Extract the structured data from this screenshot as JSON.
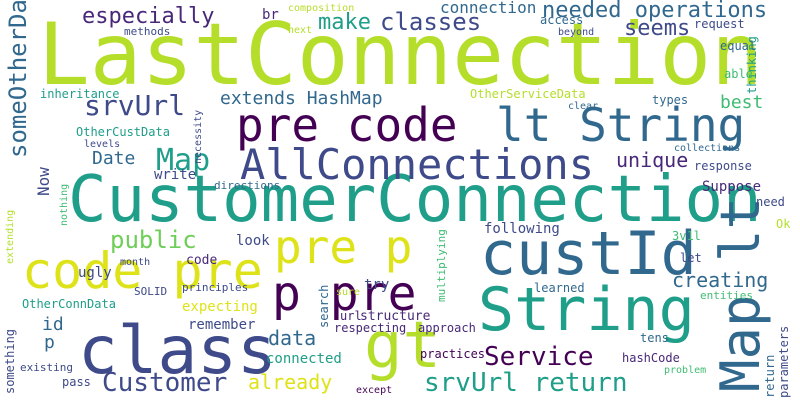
{
  "palette": {
    "background": "#ffffff",
    "lime": "#b5de2b",
    "green": "#3fbc73",
    "teal": "#1f9e89",
    "blue": "#31688e",
    "indigo": "#3e4a89",
    "purple": "#482878",
    "darkpurple": "#440154",
    "yellow": "#dde318",
    "lightgreen": "#6ece58"
  },
  "words": [
    "LastConnection",
    "CustomerConnection",
    "String",
    "class",
    "custId",
    "code pre",
    "pre code",
    "lt String",
    "AllConnections",
    "gt",
    "Map",
    "Map lt",
    "pre p",
    "p pre",
    "Customer",
    "Service",
    "srvUrl return",
    "someOtherData",
    "srvUrl",
    "especially",
    "make",
    "classes",
    "seems",
    "needed operations",
    "connection",
    "extends HashMap",
    "best",
    "unique",
    "creating",
    "public",
    "data",
    "Date",
    "already",
    "id",
    "p",
    "Now",
    "following",
    "Suppose",
    "url",
    "structure",
    "br",
    "composition",
    "access",
    "request",
    "thinking",
    "able",
    "equal",
    "types",
    "response",
    "need",
    "Ok",
    "let",
    "3v1l",
    "learned",
    "entities",
    "return",
    "parameters",
    "tens",
    "hashCode",
    "problem",
    "practices",
    "respecting",
    "approach",
    "except",
    "pass",
    "existing",
    "something",
    "connected",
    "remember",
    "expecting",
    "principles",
    "sure",
    "multiplying",
    "SOLID",
    "month",
    "look",
    "try",
    "search",
    "code",
    "write",
    "directions",
    "nothing",
    "extending",
    "levels",
    "necessity",
    "inheritance",
    "methods",
    "next",
    "beyond",
    "clear",
    "OtherServiceData",
    "OtherCustData",
    "OtherConnData",
    "collections",
    "ugly"
  ]
}
